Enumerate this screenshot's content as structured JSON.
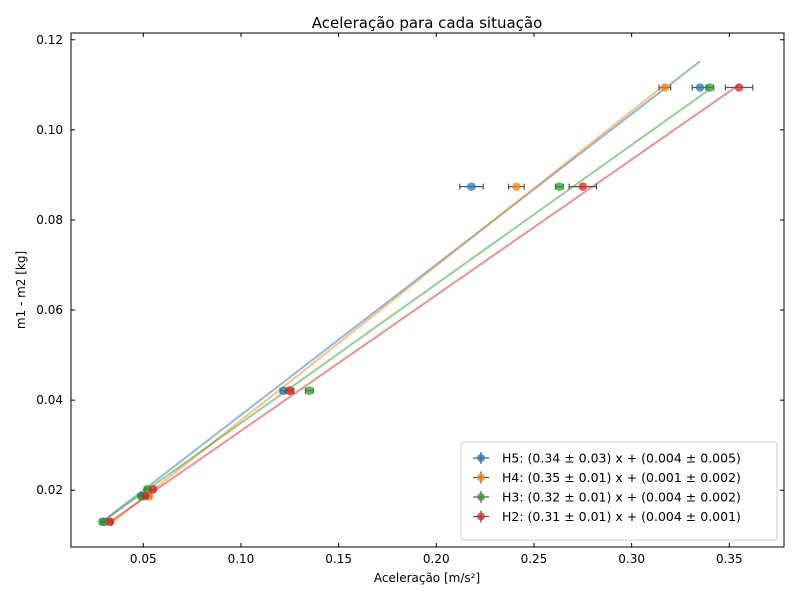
{
  "chart_data": {
    "type": "scatter",
    "title": "Aceleração para cada situação",
    "xlabel": "Aceleração [m/s²]",
    "ylabel": "m1 - m2 [kg]",
    "xlim": [
      0.013,
      0.378
    ],
    "ylim": [
      0.0074,
      0.1215
    ],
    "xticks": [
      0.05,
      0.1,
      0.15,
      0.2,
      0.25,
      0.3,
      0.35
    ],
    "xtick_labels": [
      "0.05",
      "0.10",
      "0.15",
      "0.20",
      "0.25",
      "0.30",
      "0.35"
    ],
    "yticks": [
      0.02,
      0.04,
      0.06,
      0.08,
      0.1,
      0.12
    ],
    "ytick_labels": [
      "0.02",
      "0.04",
      "0.06",
      "0.08",
      "0.10",
      "0.12"
    ],
    "grid": false,
    "legend_position": "lower-right",
    "series": [
      {
        "name": "H5: (0.34 ± 0.03) x + (0.004 ± 0.005)",
        "color": "#1f77b4",
        "points": [
          {
            "x": 0.03,
            "y": 0.013,
            "xerr": 0.001
          },
          {
            "x": 0.049,
            "y": 0.0187,
            "xerr": 0.001
          },
          {
            "x": 0.122,
            "y": 0.0421,
            "xerr": 0.002
          },
          {
            "x": 0.218,
            "y": 0.0874,
            "xerr": 0.006
          },
          {
            "x": 0.335,
            "y": 0.1094,
            "xerr": 0.004
          }
        ],
        "fit_x": [
          0.029,
          0.335
        ],
        "fit_y": [
          0.013,
          0.1152
        ]
      },
      {
        "name": "H4: (0.35 ± 0.01) x + (0.001 ± 0.002)",
        "color": "#ff7f0e",
        "points": [
          {
            "x": 0.033,
            "y": 0.013,
            "xerr": 0.001
          },
          {
            "x": 0.053,
            "y": 0.0187,
            "xerr": 0.001
          },
          {
            "x": 0.125,
            "y": 0.0421,
            "xerr": 0.002
          },
          {
            "x": 0.241,
            "y": 0.0874,
            "xerr": 0.004
          },
          {
            "x": 0.317,
            "y": 0.1094,
            "xerr": 0.003
          }
        ],
        "fit_x": [
          0.033,
          0.317
        ],
        "fit_y": [
          0.0125,
          0.11
        ]
      },
      {
        "name": "H3: (0.32 ± 0.01) x + (0.004 ± 0.002)",
        "color": "#2ca02c",
        "points": [
          {
            "x": 0.029,
            "y": 0.013,
            "xerr": 0.001
          },
          {
            "x": 0.049,
            "y": 0.0187,
            "xerr": 0.001
          },
          {
            "x": 0.052,
            "y": 0.0202,
            "xerr": 0.001
          },
          {
            "x": 0.135,
            "y": 0.0421,
            "xerr": 0.002
          },
          {
            "x": 0.263,
            "y": 0.0874,
            "xerr": 0.002
          },
          {
            "x": 0.34,
            "y": 0.1094,
            "xerr": 0.002
          }
        ],
        "fit_x": [
          0.029,
          0.34
        ],
        "fit_y": [
          0.013,
          0.109
        ]
      },
      {
        "name": "H2: (0.31 ± 0.01) x + (0.004 ± 0.001)",
        "color": "#d62728",
        "points": [
          {
            "x": 0.033,
            "y": 0.013,
            "xerr": 0.001
          },
          {
            "x": 0.051,
            "y": 0.0187,
            "xerr": 0.001
          },
          {
            "x": 0.055,
            "y": 0.0202,
            "xerr": 0.001
          },
          {
            "x": 0.125,
            "y": 0.0421,
            "xerr": 0.002
          },
          {
            "x": 0.275,
            "y": 0.0874,
            "xerr": 0.007
          },
          {
            "x": 0.355,
            "y": 0.1094,
            "xerr": 0.007
          }
        ],
        "fit_x": [
          0.033,
          0.355
        ],
        "fit_y": [
          0.013,
          0.11
        ]
      }
    ]
  }
}
